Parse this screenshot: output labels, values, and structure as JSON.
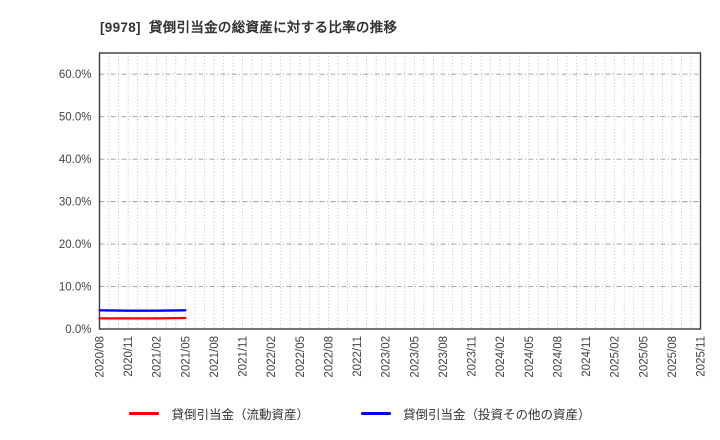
{
  "title": "[9978]  貸倒引当金の総資産に対する比率の推移",
  "chart_data": {
    "type": "line",
    "title": "[9978]  貸倒引当金の総資産に対する比率の推移",
    "x_tick_labels": [
      "2020/08",
      "2020/11",
      "2021/02",
      "2021/05",
      "2021/08",
      "2021/11",
      "2022/02",
      "2022/05",
      "2022/08",
      "2022/11",
      "2023/02",
      "2023/05",
      "2023/08",
      "2023/11",
      "2024/02",
      "2024/05",
      "2024/08",
      "2024/11",
      "2025/02",
      "2025/05",
      "2025/08",
      "2025/11"
    ],
    "minor_x_divisions_per_interval": 3,
    "y_ticks": [
      0,
      10,
      20,
      30,
      40,
      50,
      60
    ],
    "y_tick_suffix": "%",
    "ylim": [
      0,
      65
    ],
    "grid": true,
    "legend_position": "bottom",
    "series": [
      {
        "name": "貸倒引当金（流動資産）",
        "color": "#ff0000",
        "x_labels": [
          "2020/08",
          "2020/11",
          "2021/02",
          "2021/05"
        ],
        "values": [
          2.5,
          2.5,
          2.5,
          2.6
        ]
      },
      {
        "name": "貸倒引当金（投資その他の資産）",
        "color": "#0000ff",
        "x_labels": [
          "2020/08",
          "2020/11",
          "2021/02",
          "2021/05"
        ],
        "values": [
          4.4,
          4.3,
          4.3,
          4.4
        ]
      }
    ]
  },
  "legend": {
    "items": [
      {
        "label": "貸倒引当金（流動資産）",
        "color": "#ff0000"
      },
      {
        "label": "貸倒引当金（投資その他の資産）",
        "color": "#0000ff"
      }
    ]
  },
  "colors": {
    "axis_border": "#3a3a3a",
    "grid_minor": "#b5b5b5",
    "grid_major_h": "#9a9a9a",
    "tick_label": "#444444",
    "title": "#333333"
  }
}
